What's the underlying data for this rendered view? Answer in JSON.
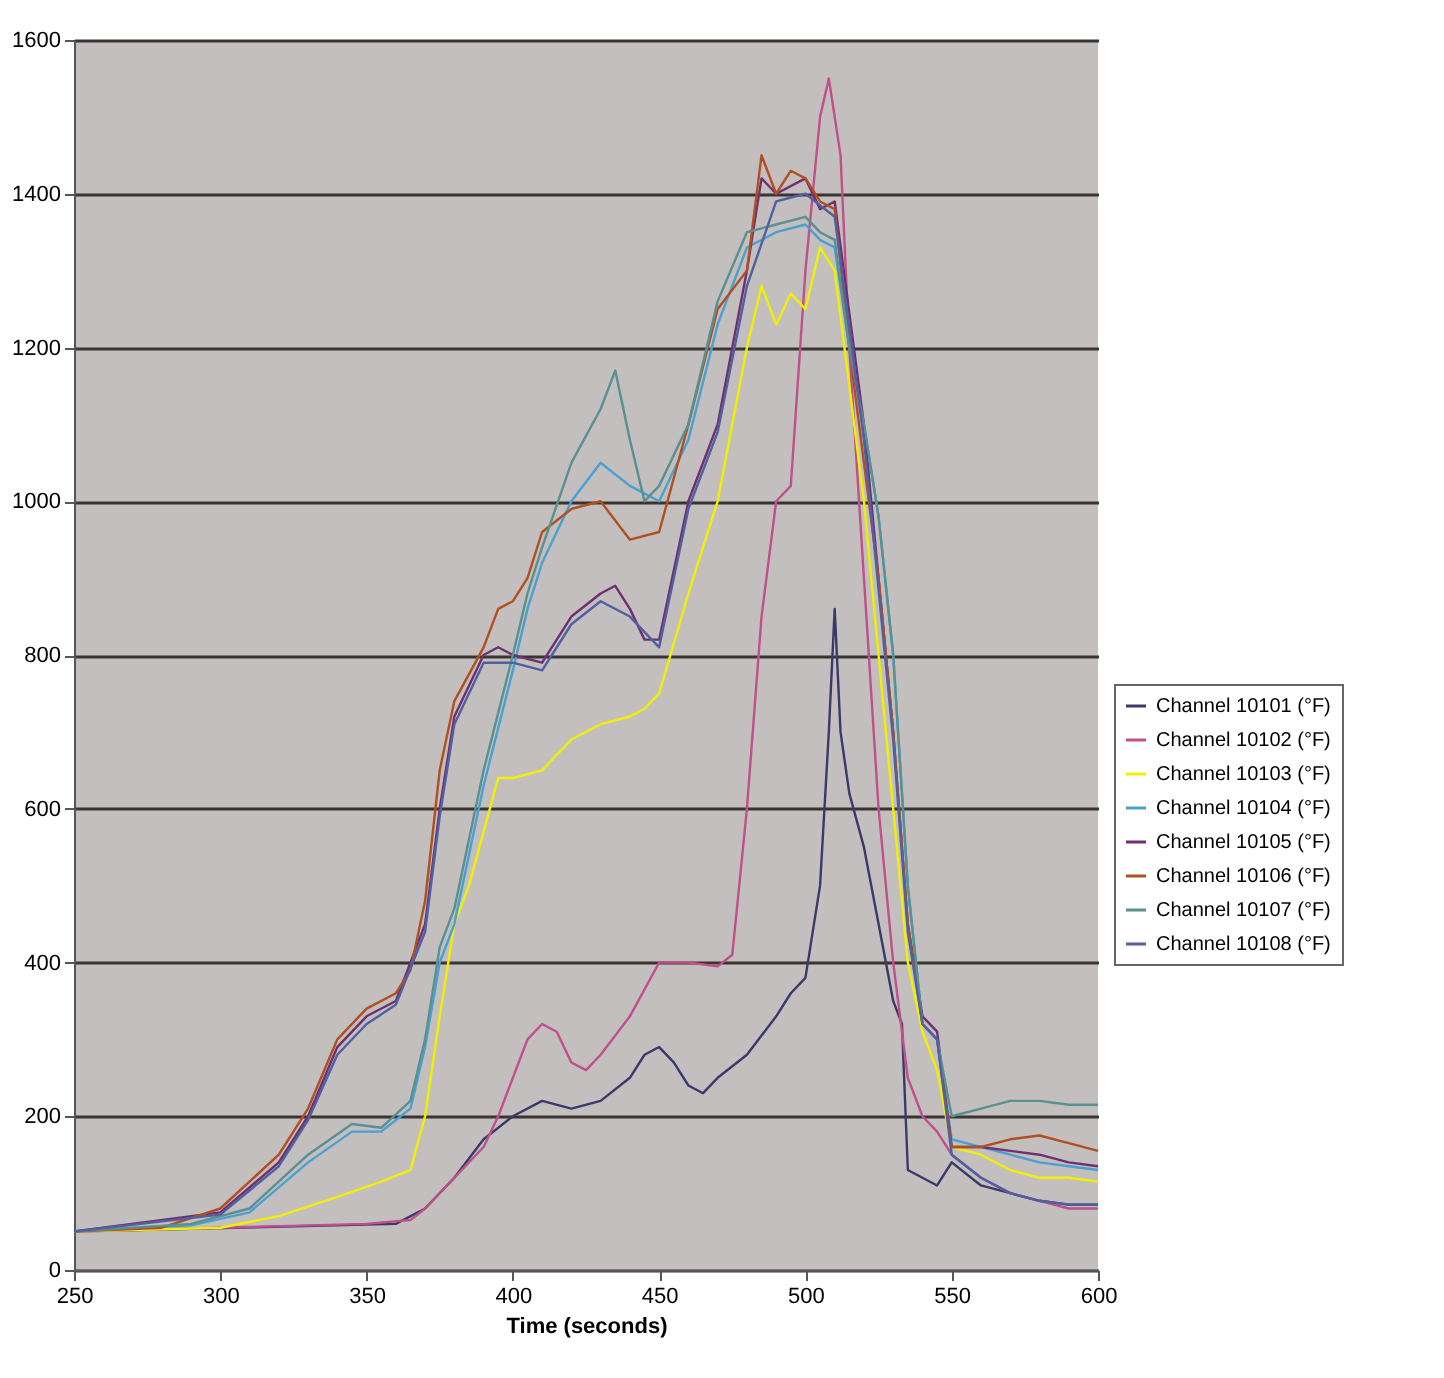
{
  "chart_data": {
    "type": "line",
    "xlabel": "Time (seconds)",
    "xlim": [
      250,
      600
    ],
    "xticks": [
      250,
      300,
      350,
      400,
      450,
      500,
      550,
      600
    ],
    "ylim": [
      0,
      1600
    ],
    "yticks": [
      0,
      200,
      400,
      600,
      800,
      1000,
      1200,
      1400,
      1600
    ],
    "grid": "y",
    "legend": "right",
    "line_style": "solid",
    "marker": "none",
    "series": [
      {
        "name": "Channel 10101 (°F)",
        "color": "#3a3a6a",
        "x": [
          250,
          360,
          370,
          380,
          390,
          400,
          410,
          420,
          430,
          440,
          445,
          450,
          455,
          460,
          465,
          470,
          480,
          490,
          495,
          500,
          505,
          508,
          510,
          512,
          515,
          520,
          525,
          530,
          533,
          535,
          540,
          545,
          550,
          560,
          570,
          580,
          590,
          600
        ],
        "values": [
          50,
          60,
          80,
          120,
          170,
          200,
          220,
          210,
          220,
          250,
          280,
          290,
          270,
          240,
          230,
          250,
          280,
          330,
          360,
          380,
          500,
          700,
          860,
          700,
          620,
          550,
          450,
          350,
          320,
          130,
          120,
          110,
          140,
          110,
          100,
          90,
          85,
          85
        ]
      },
      {
        "name": "Channel 10102 (°F)",
        "color": "#c0508a",
        "x": [
          250,
          350,
          365,
          370,
          380,
          390,
          395,
          400,
          405,
          410,
          415,
          420,
          425,
          430,
          440,
          450,
          460,
          470,
          475,
          480,
          485,
          490,
          495,
          500,
          505,
          508,
          512,
          515,
          520,
          525,
          530,
          535,
          540,
          545,
          550,
          560,
          570,
          580,
          590,
          600
        ],
        "values": [
          50,
          60,
          65,
          80,
          120,
          160,
          200,
          250,
          300,
          320,
          310,
          270,
          260,
          280,
          330,
          400,
          400,
          395,
          410,
          600,
          850,
          1000,
          1020,
          1300,
          1500,
          1550,
          1450,
          1200,
          900,
          600,
          400,
          250,
          200,
          180,
          150,
          120,
          100,
          90,
          80,
          80
        ]
      },
      {
        "name": "Channel 10103 (°F)",
        "color": "#f0f000",
        "x": [
          250,
          300,
          320,
          340,
          355,
          365,
          370,
          375,
          380,
          385,
          390,
          395,
          400,
          410,
          420,
          430,
          440,
          445,
          450,
          460,
          470,
          480,
          485,
          490,
          495,
          500,
          505,
          510,
          515,
          520,
          525,
          530,
          535,
          540,
          545,
          550,
          560,
          570,
          580,
          590,
          600
        ],
        "values": [
          50,
          55,
          70,
          95,
          115,
          130,
          200,
          330,
          450,
          500,
          570,
          640,
          640,
          650,
          690,
          710,
          720,
          730,
          750,
          880,
          1000,
          1200,
          1280,
          1230,
          1270,
          1250,
          1330,
          1300,
          1150,
          1000,
          800,
          600,
          400,
          310,
          260,
          160,
          150,
          130,
          120,
          120,
          115
        ]
      },
      {
        "name": "Channel 10104 (°F)",
        "color": "#4aa0d0",
        "x": [
          250,
          290,
          310,
          330,
          345,
          355,
          365,
          370,
          375,
          380,
          390,
          400,
          405,
          410,
          420,
          430,
          440,
          450,
          460,
          470,
          480,
          490,
          500,
          505,
          510,
          515,
          520,
          525,
          530,
          535,
          540,
          545,
          550,
          560,
          570,
          580,
          590,
          600
        ],
        "values": [
          50,
          58,
          75,
          140,
          180,
          180,
          210,
          290,
          400,
          450,
          630,
          780,
          860,
          920,
          1000,
          1050,
          1020,
          1000,
          1080,
          1230,
          1330,
          1350,
          1360,
          1340,
          1330,
          1200,
          1100,
          980,
          800,
          500,
          320,
          300,
          170,
          160,
          150,
          140,
          135,
          130
        ]
      },
      {
        "name": "Channel 10105 (°F)",
        "color": "#703070",
        "x": [
          250,
          300,
          320,
          330,
          340,
          350,
          360,
          370,
          375,
          380,
          390,
          395,
          400,
          410,
          420,
          430,
          435,
          440,
          445,
          450,
          460,
          470,
          475,
          480,
          485,
          490,
          500,
          505,
          510,
          520,
          530,
          535,
          540,
          545,
          550,
          560,
          570,
          580,
          590,
          600
        ],
        "values": [
          50,
          75,
          140,
          200,
          290,
          330,
          350,
          450,
          600,
          720,
          800,
          810,
          800,
          790,
          850,
          880,
          890,
          860,
          820,
          820,
          1000,
          1100,
          1200,
          1300,
          1420,
          1400,
          1420,
          1380,
          1390,
          1100,
          700,
          450,
          330,
          310,
          160,
          160,
          155,
          150,
          140,
          135
        ]
      },
      {
        "name": "Channel 10106 (°F)",
        "color": "#b05020",
        "x": [
          250,
          280,
          300,
          320,
          330,
          340,
          350,
          360,
          365,
          370,
          375,
          380,
          390,
          395,
          400,
          405,
          410,
          420,
          430,
          440,
          450,
          460,
          470,
          480,
          485,
          490,
          495,
          500,
          505,
          510,
          515,
          520,
          525,
          530,
          535,
          540,
          545,
          550,
          560,
          570,
          580,
          590,
          600
        ],
        "values": [
          50,
          55,
          80,
          150,
          210,
          300,
          340,
          360,
          390,
          480,
          650,
          740,
          810,
          860,
          870,
          900,
          960,
          990,
          1000,
          950,
          960,
          1100,
          1250,
          1300,
          1450,
          1400,
          1430,
          1420,
          1390,
          1380,
          1200,
          1050,
          900,
          700,
          450,
          320,
          300,
          160,
          160,
          170,
          175,
          165,
          155
        ]
      },
      {
        "name": "Channel 10107 (°F)",
        "color": "#5a9090",
        "x": [
          250,
          290,
          310,
          330,
          345,
          355,
          365,
          370,
          375,
          380,
          390,
          400,
          405,
          410,
          420,
          430,
          435,
          440,
          445,
          450,
          460,
          470,
          480,
          490,
          500,
          505,
          510,
          515,
          520,
          525,
          530,
          535,
          540,
          545,
          550,
          560,
          570,
          580,
          590,
          600
        ],
        "values": [
          50,
          60,
          80,
          150,
          190,
          185,
          220,
          300,
          420,
          470,
          650,
          800,
          880,
          940,
          1050,
          1120,
          1170,
          1080,
          1000,
          1020,
          1100,
          1260,
          1350,
          1360,
          1370,
          1350,
          1340,
          1200,
          1100,
          980,
          800,
          500,
          320,
          300,
          200,
          210,
          220,
          220,
          215,
          215
        ]
      },
      {
        "name": "Channel 10108 (°F)",
        "color": "#5060a0",
        "x": [
          250,
          300,
          320,
          330,
          340,
          350,
          360,
          370,
          375,
          380,
          390,
          400,
          410,
          420,
          430,
          440,
          450,
          460,
          470,
          480,
          490,
          500,
          510,
          520,
          530,
          535,
          540,
          545,
          550,
          560,
          570,
          580,
          590,
          600
        ],
        "values": [
          50,
          72,
          135,
          195,
          280,
          320,
          345,
          440,
          590,
          710,
          790,
          790,
          780,
          840,
          870,
          850,
          810,
          990,
          1090,
          1280,
          1390,
          1400,
          1370,
          1080,
          690,
          440,
          320,
          300,
          150,
          120,
          100,
          90,
          85,
          85
        ]
      }
    ]
  }
}
